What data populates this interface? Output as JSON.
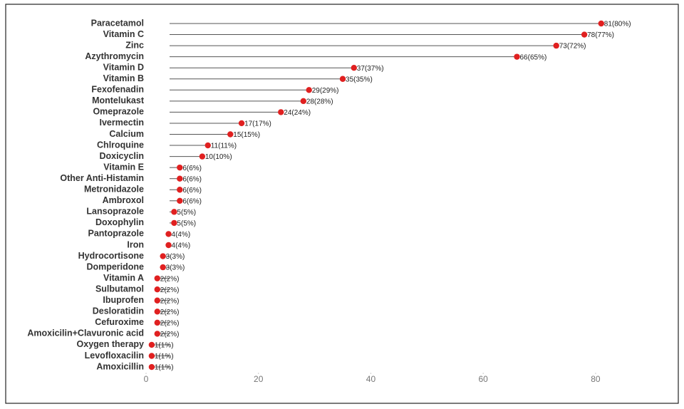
{
  "chart_data": {
    "type": "lollipop",
    "categories": [
      "Paracetamol",
      "Vitamin C",
      "Zinc",
      "Azythromycin",
      "Vitamin D",
      "Vitamin B",
      "Fexofenadin",
      "Montelukast",
      "Omeprazole",
      "Ivermectin",
      "Calcium",
      "Chlroquine",
      "Doxicyclin",
      "Vitamin E",
      "Other Anti-Histamin",
      "Metronidazole",
      "Ambroxol",
      "Lansoprazole",
      "Doxophylin",
      "Pantoprazole",
      "Iron",
      "Hydrocortisone",
      "Domperidone",
      "Vitamin A",
      "Sulbutamol",
      "Ibuprofen",
      "Desloratidin",
      "Cefuroxime",
      "Amoxicilin+Clavuronic acid",
      "Oxygen therapy",
      "Levofloxacilin",
      "Amoxicillin"
    ],
    "values": [
      81,
      78,
      73,
      66,
      37,
      35,
      29,
      28,
      24,
      17,
      15,
      11,
      10,
      6,
      6,
      6,
      6,
      5,
      5,
      4,
      4,
      3,
      3,
      2,
      2,
      2,
      2,
      2,
      2,
      1,
      1,
      1
    ],
    "value_labels": [
      "81(80%)",
      "78(77%)",
      "73(72%)",
      "66(65%)",
      "37(37%)",
      "35(35%)",
      "29(29%)",
      "28(28%)",
      "24(24%)",
      "17(17%)",
      "15(15%)",
      "11(11%)",
      "10(10%)",
      "6(6%)",
      "6(6%)",
      "6(6%)",
      "6(6%)",
      "5(5%)",
      "5(5%)",
      "4(4%)",
      "4(4%)",
      "3(3%)",
      "3(3%)",
      "2(2%)",
      "2(2%)",
      "2(2%)",
      "2(2%)",
      "2(2%)",
      "2(2%)",
      "1(1%)",
      "1(1%)",
      "1(1%)"
    ],
    "color": "#e02020",
    "stem_color": "#555555",
    "xlim": [
      0,
      88
    ],
    "xticks": [
      0,
      20,
      40,
      60,
      80
    ]
  }
}
